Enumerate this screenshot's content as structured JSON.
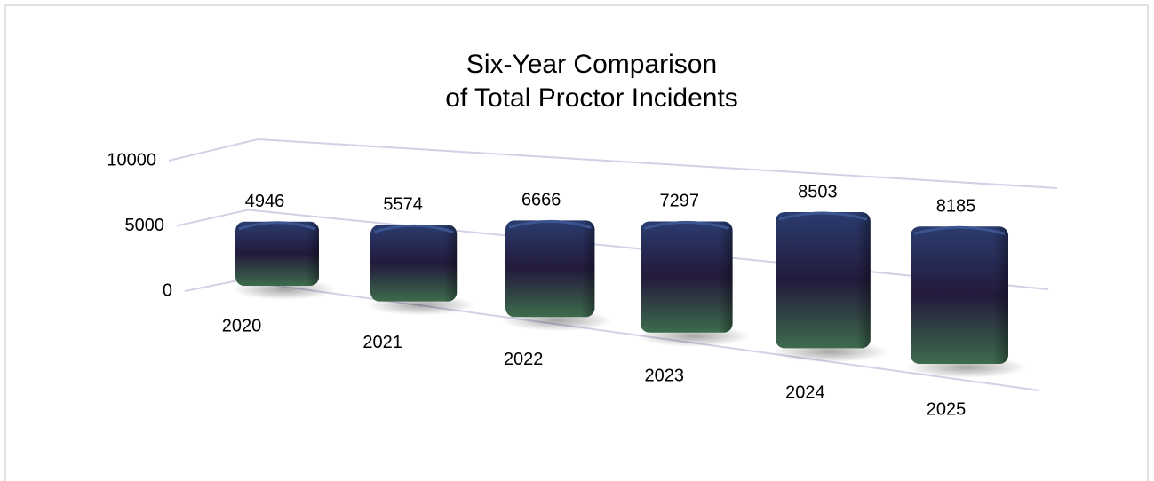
{
  "chart_data": {
    "type": "bar3d",
    "title": [
      "Six-Year Comparison",
      "of Total Proctor Incidents"
    ],
    "categories": [
      "2020",
      "2021",
      "2022",
      "2023",
      "2024",
      "2025"
    ],
    "values": [
      4946,
      5574,
      6666,
      7297,
      8503,
      8185
    ],
    "ylim": [
      0,
      10000
    ],
    "yticks": [
      0,
      5000,
      10000
    ],
    "grid": true
  }
}
